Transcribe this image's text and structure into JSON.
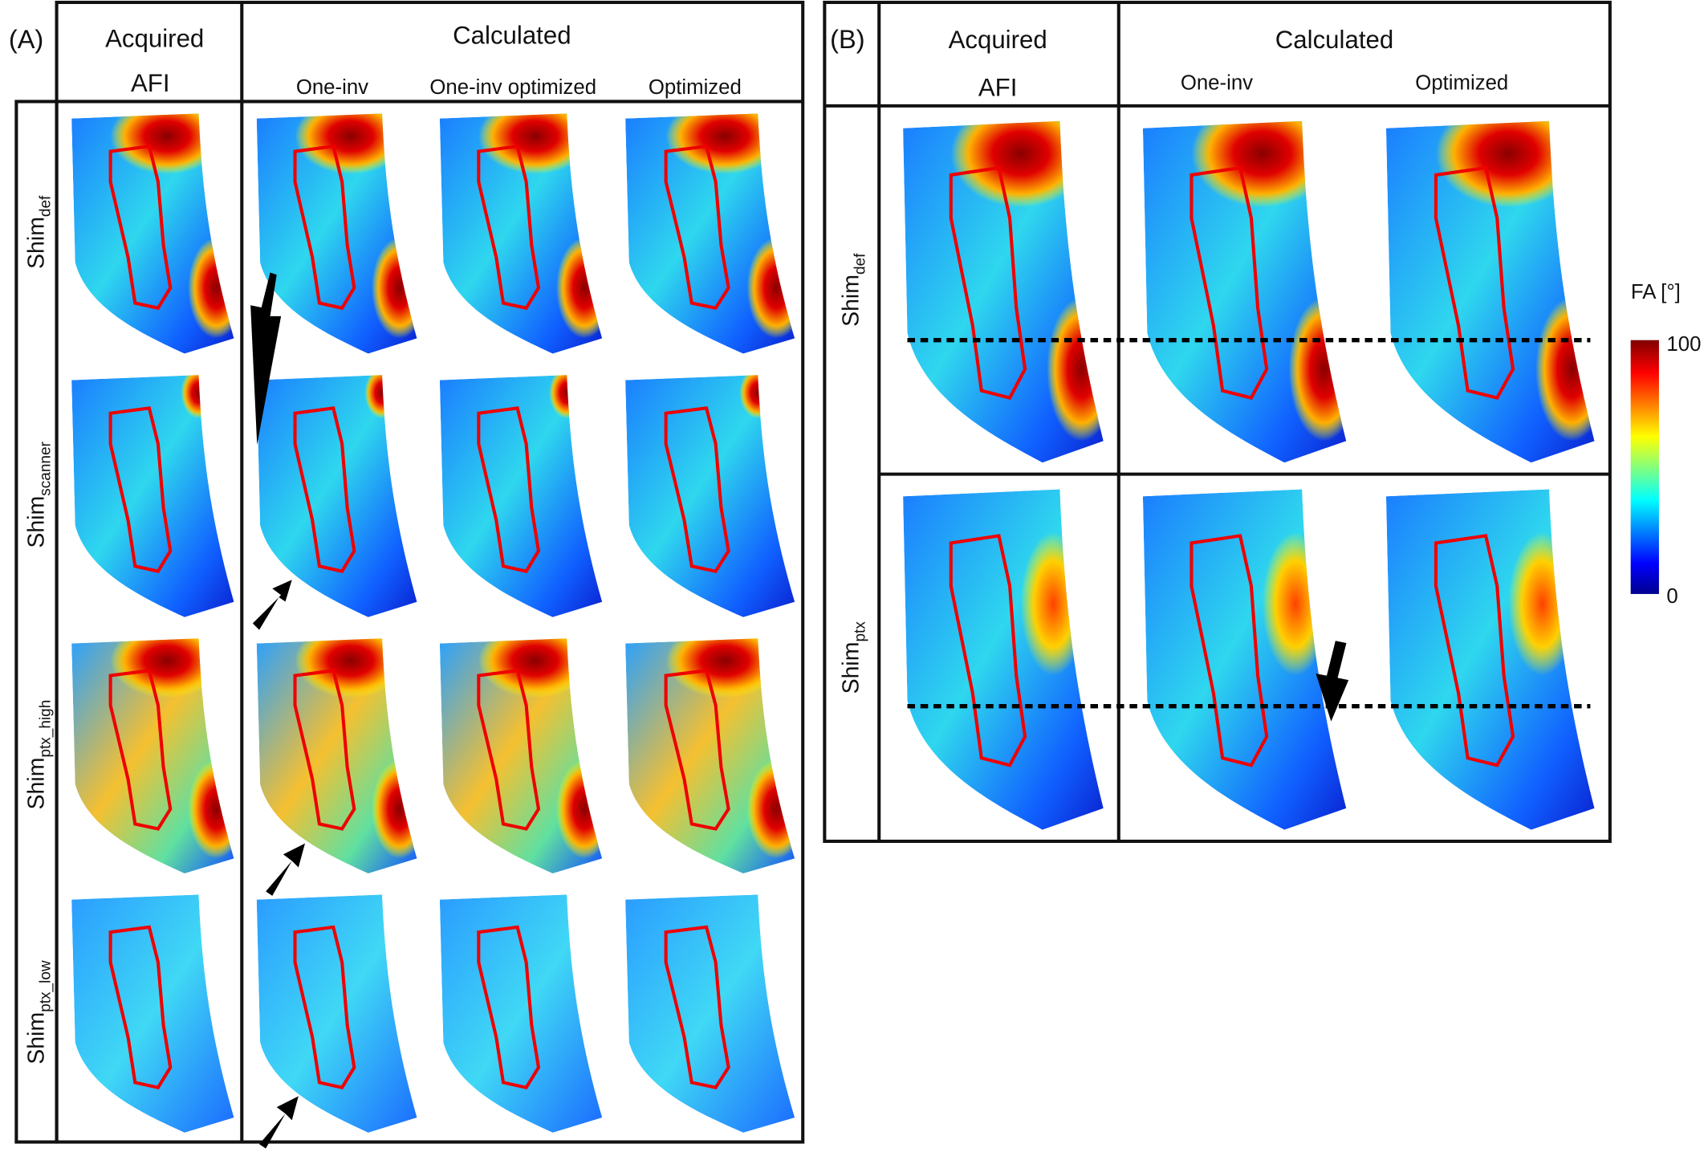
{
  "panel_a": {
    "label": "(A)",
    "headers": {
      "acquired": "Acquired",
      "calculated": "Calculated"
    },
    "columns": [
      "AFI",
      "One-inv",
      "One-inv optimized",
      "Optimized"
    ],
    "rows": [
      {
        "base": "Shim",
        "sub": "def"
      },
      {
        "base": "Shim",
        "sub": "scanner"
      },
      {
        "base": "Shim",
        "sub": "ptx_high"
      },
      {
        "base": "Shim",
        "sub": "ptx_low"
      }
    ]
  },
  "panel_b": {
    "label": "(B)",
    "headers": {
      "acquired": "Acquired",
      "calculated": "Calculated"
    },
    "columns": [
      "AFI",
      "One-inv",
      "Optimized"
    ],
    "rows": [
      {
        "base": "Shim",
        "sub": "def"
      },
      {
        "base": "Shim",
        "sub": "ptx"
      }
    ]
  },
  "colorbar": {
    "label": "FA [°]",
    "max": 100,
    "min": 0
  }
}
